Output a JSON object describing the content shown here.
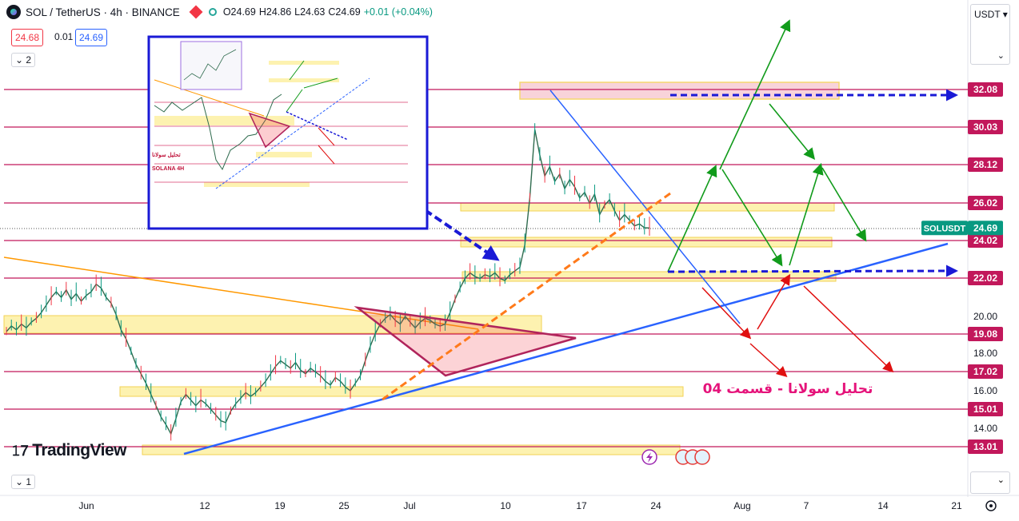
{
  "header": {
    "symbol": "SOL / TetherUS · 4h · BINANCE",
    "open": "O24.69",
    "high": "H24.86",
    "low": "L24.63",
    "close": "C24.69",
    "change": "+0.01 (+0.04%)",
    "sell_price": "24.68",
    "spread": "0.01",
    "buy_price": "24.69",
    "indicators_toggle": "2",
    "currency": "USDT"
  },
  "footer": {
    "goto_label": "1"
  },
  "watermark": "TradingView",
  "chart_data": {
    "type": "line",
    "currency": "USDT",
    "ticker_label": "SOLUSDT",
    "last_price": 24.69,
    "x_axis_labels": [
      {
        "label": "Jun"
      },
      {
        "label": "12"
      },
      {
        "label": "19"
      },
      {
        "label": "25"
      },
      {
        "label": "Jul"
      },
      {
        "label": "10"
      },
      {
        "label": "17"
      },
      {
        "label": "24"
      },
      {
        "label": "Aug"
      },
      {
        "label": "7"
      },
      {
        "label": "14"
      },
      {
        "label": "21"
      }
    ],
    "y_ticks": [
      "20.00",
      "18.00",
      "16.00",
      "14.00"
    ],
    "levels": [
      {
        "value": 32.08,
        "label": "32.08"
      },
      {
        "value": 30.03,
        "label": "30.03"
      },
      {
        "value": 28.12,
        "label": "28.12"
      },
      {
        "value": 26.02,
        "label": "26.02"
      },
      {
        "value": 24.02,
        "label": "24.02"
      },
      {
        "value": 22.02,
        "label": "22.02"
      },
      {
        "value": 19.08,
        "label": "19.08"
      },
      {
        "value": 17.02,
        "label": "17.02"
      },
      {
        "value": 15.01,
        "label": "15.01"
      },
      {
        "value": 13.01,
        "label": "13.01"
      }
    ],
    "annotation": "تحلیل سولانا - قسمت 04",
    "price_series": [
      19.2,
      19.5,
      19.3,
      19.6,
      19.4,
      19.7,
      19.9,
      20.2,
      20.6,
      21.0,
      21.3,
      21.0,
      21.4,
      20.9,
      21.2,
      20.8,
      21.1,
      21.3,
      21.7,
      21.5,
      21.0,
      20.7,
      20.1,
      19.3,
      18.8,
      18.1,
      17.4,
      16.9,
      16.4,
      15.8,
      15.2,
      14.6,
      14.2,
      13.7,
      14.5,
      15.4,
      15.8,
      15.5,
      15.2,
      15.5,
      15.3,
      15.0,
      14.7,
      14.4,
      14.3,
      14.9,
      15.3,
      15.6,
      15.9,
      15.7,
      15.9,
      16.2,
      16.5,
      16.9,
      17.3,
      17.6,
      17.4,
      17.2,
      17.5,
      17.1,
      16.9,
      17.2,
      17.0,
      16.8,
      16.5,
      16.3,
      16.7,
      16.5,
      16.2,
      16.0,
      16.4,
      16.8,
      17.6,
      18.4,
      19.1,
      19.6,
      19.9,
      20.1,
      19.8,
      19.6,
      20.0,
      19.7,
      19.4,
      19.7,
      19.9,
      19.8,
      19.6,
      19.5,
      19.6,
      20.2,
      20.9,
      21.5,
      22.0,
      22.3,
      22.1,
      22.0,
      22.2,
      22.1,
      22.3,
      22.0,
      21.9,
      22.2,
      22.4,
      22.6,
      23.8,
      26.3,
      29.9,
      28.6,
      27.5,
      28.0,
      27.2,
      27.6,
      26.8,
      27.3,
      26.9,
      26.3,
      26.6,
      26.0,
      26.5,
      25.4,
      25.9,
      26.2,
      25.6,
      25.1,
      25.4,
      25.1,
      24.8,
      24.9,
      24.7,
      24.69
    ]
  }
}
